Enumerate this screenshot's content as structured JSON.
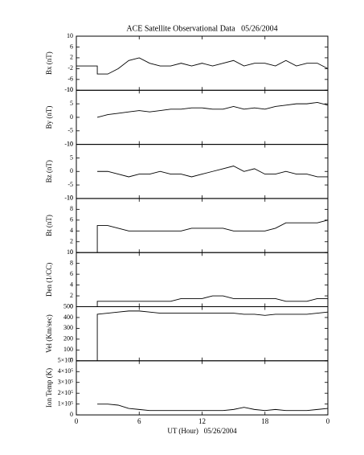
{
  "chart_data": [
    {
      "type": "line",
      "title": "ACE Satellite Observational Data   05/26/2004",
      "ylabel": "Bx (nT)",
      "color": "#000000",
      "x": [
        0,
        2,
        2,
        3,
        4,
        5,
        6,
        7,
        8,
        9,
        10,
        11,
        12,
        13,
        14,
        15,
        16,
        17,
        18,
        19,
        20,
        21,
        22,
        23,
        24
      ],
      "values": [
        -1,
        -1,
        -4,
        -4,
        -2,
        1,
        2,
        0,
        -1,
        -1,
        0,
        -1,
        0,
        -1,
        0,
        1,
        -1,
        0,
        0,
        -1,
        1,
        -1,
        0,
        0,
        -2
      ],
      "xlim": [
        0,
        24
      ],
      "ylim": [
        -10,
        10
      ],
      "yticks": [
        10,
        6,
        2,
        -2,
        -6,
        -10
      ]
    },
    {
      "type": "line",
      "ylabel": "By (nT)",
      "color": "#000000",
      "x": [
        2,
        3,
        4,
        5,
        6,
        7,
        8,
        9,
        10,
        11,
        12,
        13,
        14,
        15,
        16,
        17,
        18,
        19,
        20,
        21,
        22,
        23,
        24
      ],
      "values": [
        0,
        1,
        1.5,
        2,
        2.5,
        2,
        2.5,
        3,
        3,
        3.5,
        3.5,
        3,
        3,
        4,
        3,
        3.5,
        3,
        4,
        4.5,
        5,
        5,
        5.5,
        4.5
      ],
      "xlim": [
        0,
        24
      ],
      "ylim": [
        -10,
        10
      ],
      "yticks": [
        10,
        5,
        0,
        -5,
        -10
      ]
    },
    {
      "type": "line",
      "ylabel": "Bz (nT)",
      "color": "#000000",
      "x": [
        2,
        3,
        4,
        5,
        6,
        7,
        8,
        9,
        10,
        11,
        12,
        13,
        14,
        15,
        16,
        17,
        18,
        19,
        20,
        21,
        22,
        23,
        24
      ],
      "values": [
        0,
        0,
        -1,
        -2,
        -1,
        -1,
        0,
        -1,
        -1,
        -2,
        -1,
        0,
        1,
        2,
        0,
        1,
        -1,
        -1,
        0,
        -1,
        -1,
        -2,
        -2
      ],
      "xlim": [
        0,
        24
      ],
      "ylim": [
        -10,
        10
      ],
      "yticks": [
        10,
        5,
        0,
        -5,
        -10
      ]
    },
    {
      "type": "line",
      "ylabel": "Bt (nT)",
      "color": "#000000",
      "x": [
        2,
        2,
        3,
        4,
        5,
        6,
        7,
        8,
        9,
        10,
        11,
        12,
        13,
        14,
        15,
        16,
        17,
        18,
        19,
        20,
        21,
        22,
        23,
        24
      ],
      "values": [
        0,
        5,
        5,
        4.5,
        4,
        4,
        4,
        4,
        4,
        4,
        4.5,
        4.5,
        4.5,
        4.5,
        4,
        4,
        4,
        4,
        4.5,
        5.5,
        5.5,
        5.5,
        5.5,
        6
      ],
      "xlim": [
        0,
        24
      ],
      "ylim": [
        0,
        10
      ],
      "yticks": [
        10,
        8,
        6,
        4,
        2,
        0
      ]
    },
    {
      "type": "line",
      "ylabel": "Den (1/CC)",
      "color": "#000000",
      "x": [
        2,
        2,
        3,
        4,
        5,
        6,
        7,
        8,
        9,
        10,
        11,
        12,
        13,
        14,
        15,
        16,
        17,
        18,
        19,
        20,
        21,
        22,
        23,
        24
      ],
      "values": [
        0,
        1,
        1,
        1,
        1,
        1,
        1,
        1,
        1,
        1.5,
        1.5,
        1.5,
        2,
        2,
        1.5,
        1.5,
        1.5,
        1.5,
        1.5,
        1,
        1,
        1,
        1.5,
        1.5
      ],
      "xlim": [
        0,
        24
      ],
      "ylim": [
        0,
        10
      ],
      "yticks": [
        10,
        8,
        6,
        4,
        2,
        0
      ]
    },
    {
      "type": "line",
      "ylabel": "Vel (Km/sec)",
      "color": "#000000",
      "x": [
        2,
        2,
        3,
        4,
        5,
        6,
        7,
        8,
        9,
        10,
        11,
        12,
        13,
        14,
        15,
        16,
        17,
        18,
        19,
        20,
        21,
        22,
        23,
        24
      ],
      "values": [
        0,
        430,
        440,
        450,
        460,
        460,
        450,
        440,
        440,
        440,
        440,
        440,
        440,
        440,
        440,
        430,
        430,
        420,
        430,
        430,
        430,
        430,
        440,
        450
      ],
      "xlim": [
        0,
        24
      ],
      "ylim": [
        0,
        500
      ],
      "yticks": [
        500,
        400,
        300,
        200,
        100,
        0
      ]
    },
    {
      "type": "line",
      "ylabel": "Ion Temp (K)",
      "xlabel": "UT (Hour)   05/26/2004",
      "color": "#000000",
      "x": [
        2,
        3,
        4,
        5,
        6,
        7,
        8,
        9,
        10,
        11,
        12,
        13,
        14,
        15,
        16,
        17,
        18,
        19,
        20,
        21,
        22,
        23,
        24
      ],
      "values": [
        100000,
        100000,
        90000,
        60000,
        50000,
        40000,
        40000,
        40000,
        40000,
        40000,
        40000,
        40000,
        40000,
        50000,
        70000,
        50000,
        40000,
        50000,
        40000,
        40000,
        40000,
        50000,
        60000
      ],
      "xlim": [
        0,
        24
      ],
      "ylim": [
        0,
        500000
      ],
      "yticks": [
        {
          "value": 500000,
          "label": "5×10⁵"
        },
        {
          "value": 400000,
          "label": "4×10⁵"
        },
        {
          "value": 300000,
          "label": "3×10⁵"
        },
        {
          "value": 200000,
          "label": "2×10⁵"
        },
        {
          "value": 100000,
          "label": "1×10⁵"
        },
        0
      ],
      "xticks": [
        0,
        6,
        12,
        18,
        {
          "value": 24,
          "label": "0"
        }
      ]
    }
  ]
}
